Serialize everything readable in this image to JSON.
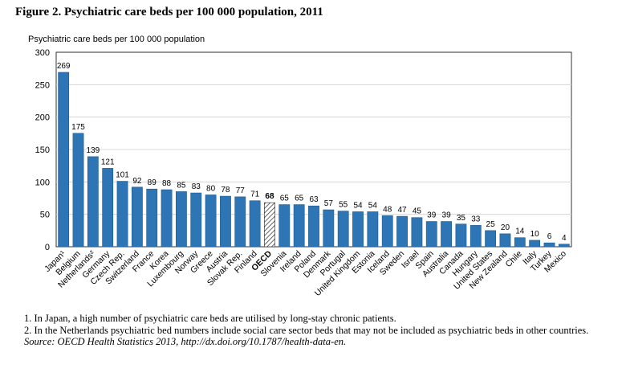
{
  "figure": {
    "title": "Figure 2. Psychiatric care beds per 100 000 population, 2011",
    "unit_label": "Psychiatric care beds per 100 000 population"
  },
  "notes": {
    "note1": "1. In Japan, a high number of psychiatric care beds are utilised by long-stay chronic patients.",
    "note2": "2. In the Netherlands psychiatric bed numbers include social care sector beds that may not be included as psychiatric beds in other countries.",
    "source": "Source: OECD Health Statistics 2013, http://dx.doi.org/10.1787/health-data-en."
  },
  "chart_data": {
    "type": "bar",
    "title": "Psychiatric care beds per 100 000 population, 2011",
    "xlabel": "",
    "ylabel": "Psychiatric care beds per 100 000 population",
    "ylim": [
      0,
      300
    ],
    "yticks": [
      0,
      50,
      100,
      150,
      200,
      250,
      300
    ],
    "grid": true,
    "bar_color": "#2e75b6",
    "highlight_category": "OECD",
    "categories": [
      "Japan¹",
      "Belgium",
      "Netherlands²",
      "Germany",
      "Czech Rep.",
      "Switzerland",
      "France",
      "Korea",
      "Luxembourg",
      "Norway",
      "Greece",
      "Austria",
      "Slovak Rep.",
      "Finland",
      "OECD",
      "Slovenia",
      "Ireland",
      "Poland",
      "Denmark",
      "Portugal",
      "United Kingdom",
      "Estonia",
      "Iceland",
      "Sweden",
      "Israel",
      "Spain",
      "Australia",
      "Canada",
      "Hungary",
      "United States",
      "New Zealand",
      "Chile",
      "Italy",
      "Turkey",
      "Mexico"
    ],
    "values": [
      269,
      175,
      139,
      121,
      101,
      92,
      89,
      88,
      85,
      83,
      80,
      78,
      77,
      71,
      68,
      65,
      65,
      63,
      57,
      55,
      54,
      54,
      48,
      47,
      45,
      39,
      39,
      35,
      33,
      25,
      20,
      14,
      10,
      6,
      4
    ]
  }
}
